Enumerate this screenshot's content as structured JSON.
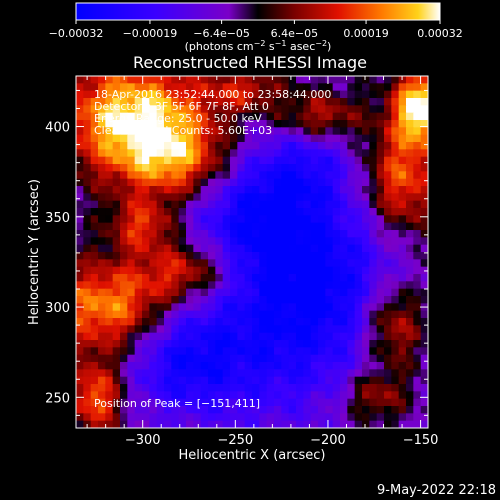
{
  "chart_data": {
    "type": "heatmap",
    "title": "Reconstructed RHESSI Image",
    "xlabel": "Heliocentric X (arcsec)",
    "ylabel": "Heliocentric Y (arcsec)",
    "xlim": [
      -336,
      -146
    ],
    "ylim": [
      233,
      428
    ],
    "x_ticks": [
      -300,
      -250,
      -200,
      -150
    ],
    "x_tick_labels": [
      "−300",
      "−250",
      "−200",
      "−150"
    ],
    "y_ticks": [
      250,
      300,
      350,
      400
    ],
    "y_tick_labels": [
      "250",
      "300",
      "350",
      "400"
    ],
    "colorbar": {
      "range": [
        -0.00032,
        0.00032
      ],
      "ticks": [
        -0.00032,
        -0.00019,
        -6.4e-05,
        6.4e-05,
        0.00019,
        0.00032
      ],
      "tick_labels": [
        "−0.00032",
        "−0.00019",
        "−6.4e−05",
        "6.4e−05",
        "0.00019",
        "0.00032"
      ],
      "units_prefix": "(photons cm",
      "units_sup1": "−2",
      "units_mid": " s",
      "units_sup2": "−1",
      "units_suffix": " asec",
      "units_sup3": "−2",
      "units_close": ")"
    },
    "info_lines": [
      "18-Apr-2016 23:52:44.000 to 23:58:44.000",
      "Detectors: 3F 5F 6F 7F 8F, Att 0",
      "Energy Range: 25.0 - 50.0 keV",
      "Clean     Total Counts: 5.60E+03"
    ],
    "peak_label": "Position of Peak = [−151,411]",
    "peak": [
      -151,
      411
    ]
  },
  "footer": {
    "date": "9-May-2022 22:18"
  }
}
